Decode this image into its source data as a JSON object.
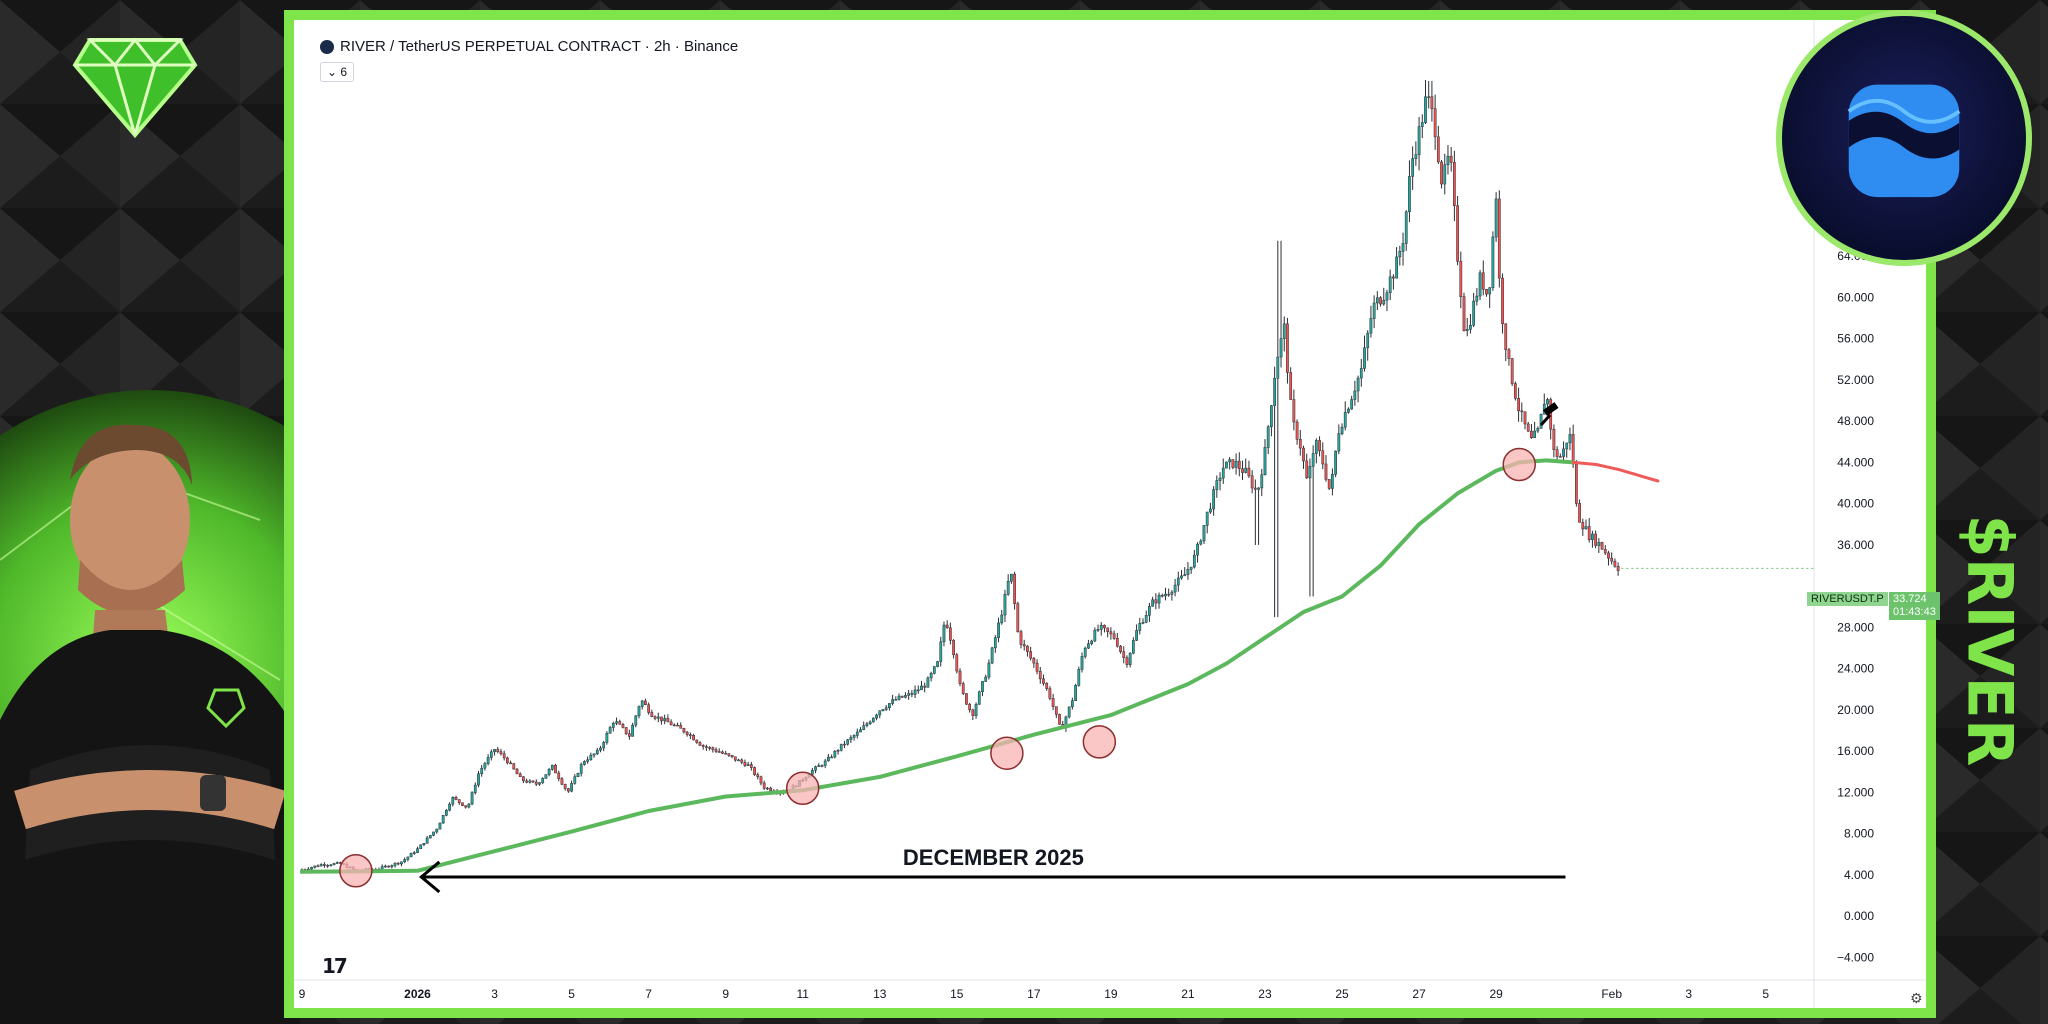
{
  "chart_data": {
    "type": "candlestick",
    "title": "RIVER / TetherUS PERPETUAL CONTRACT · 2h · Binance",
    "indicator_toggle": "6",
    "y_ticks": [
      64,
      60,
      56,
      52,
      48,
      44,
      40,
      36,
      28,
      24,
      20,
      16,
      12,
      8,
      4,
      0,
      -4
    ],
    "y_tick_labels": [
      "64.000",
      "60.000",
      "56.000",
      "52.000",
      "48.000",
      "44.000",
      "40.000",
      "36.000",
      "28.000",
      "24.000",
      "20.000",
      "16.000",
      "12.000",
      "8.000",
      "4.000",
      "0.000",
      "−4.000"
    ],
    "ylim": [
      -6,
      84
    ],
    "x_tick_labels": [
      "9",
      "2026",
      "3",
      "5",
      "7",
      "9",
      "11",
      "13",
      "15",
      "17",
      "19",
      "21",
      "23",
      "25",
      "27",
      "29",
      "Feb",
      "3",
      "5"
    ],
    "x_tick_days": [
      -3,
      0,
      2,
      4,
      6,
      8,
      10,
      12,
      14,
      16,
      18,
      20,
      22,
      24,
      26,
      28,
      31,
      33,
      35
    ],
    "xlim_days": [
      -3.05,
      36.2
    ],
    "price_path": [
      [
        -3,
        4.5
      ],
      [
        -2.5,
        5.0
      ],
      [
        -2,
        5.1
      ],
      [
        -1.6,
        4.4
      ],
      [
        -1,
        4.6
      ],
      [
        -0.4,
        5.3
      ],
      [
        0,
        6.5
      ],
      [
        0.5,
        8.5
      ],
      [
        0.9,
        11.5
      ],
      [
        1.3,
        10.5
      ],
      [
        1.6,
        14.0
      ],
      [
        2.0,
        16.2
      ],
      [
        2.3,
        15.2
      ],
      [
        2.7,
        13.2
      ],
      [
        3.1,
        12.8
      ],
      [
        3.5,
        14.5
      ],
      [
        3.9,
        12.0
      ],
      [
        4.3,
        15.0
      ],
      [
        4.7,
        16.0
      ],
      [
        5.1,
        19.0
      ],
      [
        5.5,
        17.5
      ],
      [
        5.8,
        21.0
      ],
      [
        6.1,
        19.5
      ],
      [
        6.5,
        18.8
      ],
      [
        7.0,
        17.8
      ],
      [
        7.4,
        16.5
      ],
      [
        7.8,
        16.0
      ],
      [
        8.2,
        15.3
      ],
      [
        8.6,
        14.6
      ],
      [
        9.0,
        12.5
      ],
      [
        9.4,
        12.0
      ],
      [
        9.8,
        12.6
      ],
      [
        10.2,
        14.0
      ],
      [
        10.6,
        15.0
      ],
      [
        11.0,
        16.5
      ],
      [
        11.5,
        18.0
      ],
      [
        12.0,
        20.0
      ],
      [
        12.4,
        21.0
      ],
      [
        12.8,
        21.5
      ],
      [
        13.2,
        22.5
      ],
      [
        13.5,
        24.5
      ],
      [
        13.7,
        29.0
      ],
      [
        13.9,
        26.0
      ],
      [
        14.1,
        22.0
      ],
      [
        14.4,
        19.5
      ],
      [
        14.8,
        24.0
      ],
      [
        15.2,
        30.0
      ],
      [
        15.4,
        33.5
      ],
      [
        15.6,
        27.0
      ],
      [
        16.0,
        24.5
      ],
      [
        16.4,
        21.5
      ],
      [
        16.7,
        18.0
      ],
      [
        17.0,
        21.0
      ],
      [
        17.3,
        26.0
      ],
      [
        17.7,
        28.0
      ],
      [
        18.1,
        27.0
      ],
      [
        18.4,
        24.5
      ],
      [
        18.7,
        28.0
      ],
      [
        19.1,
        30.5
      ],
      [
        19.5,
        31.5
      ],
      [
        19.9,
        33.0
      ],
      [
        20.2,
        35.0
      ],
      [
        20.5,
        39.0
      ],
      [
        20.9,
        43.5
      ],
      [
        21.2,
        44.0
      ],
      [
        21.5,
        43.0
      ],
      [
        21.8,
        41.0
      ],
      [
        22.0,
        45.0
      ],
      [
        22.3,
        54.0
      ],
      [
        22.5,
        57.0
      ],
      [
        22.7,
        48.0
      ],
      [
        22.9,
        46.0
      ],
      [
        23.1,
        42.0
      ],
      [
        23.3,
        46.0
      ],
      [
        23.5,
        44.0
      ],
      [
        23.7,
        41.0
      ],
      [
        23.9,
        47.0
      ],
      [
        24.2,
        50.0
      ],
      [
        24.5,
        53.0
      ],
      [
        24.8,
        59.0
      ],
      [
        25.1,
        60.5
      ],
      [
        25.4,
        63.0
      ],
      [
        25.6,
        66.0
      ],
      [
        25.8,
        73.0
      ],
      [
        26.0,
        76.0
      ],
      [
        26.2,
        79.5
      ],
      [
        26.4,
        77.0
      ],
      [
        26.6,
        71.0
      ],
      [
        26.8,
        74.0
      ],
      [
        27.0,
        64.0
      ],
      [
        27.2,
        56.0
      ],
      [
        27.4,
        59.0
      ],
      [
        27.6,
        62.0
      ],
      [
        27.8,
        60.0
      ],
      [
        28.0,
        70.0
      ],
      [
        28.1,
        60.0
      ],
      [
        28.3,
        54.0
      ],
      [
        28.6,
        49.0
      ],
      [
        28.9,
        46.0
      ],
      [
        29.1,
        47.0
      ],
      [
        29.3,
        51.0
      ],
      [
        29.5,
        45.0
      ],
      [
        29.7,
        44.5
      ],
      [
        29.9,
        47.0
      ],
      [
        30.0,
        44.0
      ],
      [
        30.1,
        39.0
      ],
      [
        30.4,
        37.0
      ],
      [
        30.7,
        36.0
      ],
      [
        31.0,
        34.5
      ],
      [
        31.2,
        33.7
      ]
    ],
    "ma_path": [
      [
        -3,
        4.3
      ],
      [
        0,
        4.4
      ],
      [
        2,
        6.3
      ],
      [
        4,
        8.2
      ],
      [
        6,
        10.2
      ],
      [
        8,
        11.6
      ],
      [
        10,
        12.2
      ],
      [
        12,
        13.5
      ],
      [
        14,
        15.5
      ],
      [
        16,
        17.6
      ],
      [
        18,
        19.5
      ],
      [
        20,
        22.5
      ],
      [
        21,
        24.5
      ],
      [
        22,
        27.0
      ],
      [
        23,
        29.5
      ],
      [
        24,
        31.0
      ],
      [
        25,
        34.0
      ],
      [
        26,
        38.0
      ],
      [
        27,
        41.0
      ],
      [
        28,
        43.2
      ],
      [
        28.6,
        44.0
      ],
      [
        29.3,
        44.2
      ],
      [
        30.0,
        44.0
      ]
    ],
    "ma_projection": [
      [
        30.0,
        44.0
      ],
      [
        30.6,
        43.8
      ],
      [
        31.2,
        43.3
      ],
      [
        32.2,
        42.2
      ]
    ],
    "touch_points": [
      [
        -1.6,
        4.4
      ],
      [
        10.0,
        12.4
      ],
      [
        15.3,
        15.8
      ],
      [
        17.7,
        16.9
      ],
      [
        28.6,
        43.8
      ]
    ],
    "annotation_text": "DECEMBER 2025",
    "arrow": {
      "from_day": 29.8,
      "to_day": 0.1,
      "price": 3.8
    },
    "symbol": "RIVERUSDT.P",
    "last_price": "33.724",
    "countdown": "01:43:43",
    "colors": {
      "up": "#26a69a",
      "down": "#ef5350",
      "candle": "#2b2f36",
      "ma": "#5cb85c",
      "projection": "#ef5a5a",
      "touch_fill": "#f8b3b3",
      "touch_stroke": "#8b2e2e",
      "frame": "#7fe34a"
    }
  },
  "side_label": "$RIVER"
}
